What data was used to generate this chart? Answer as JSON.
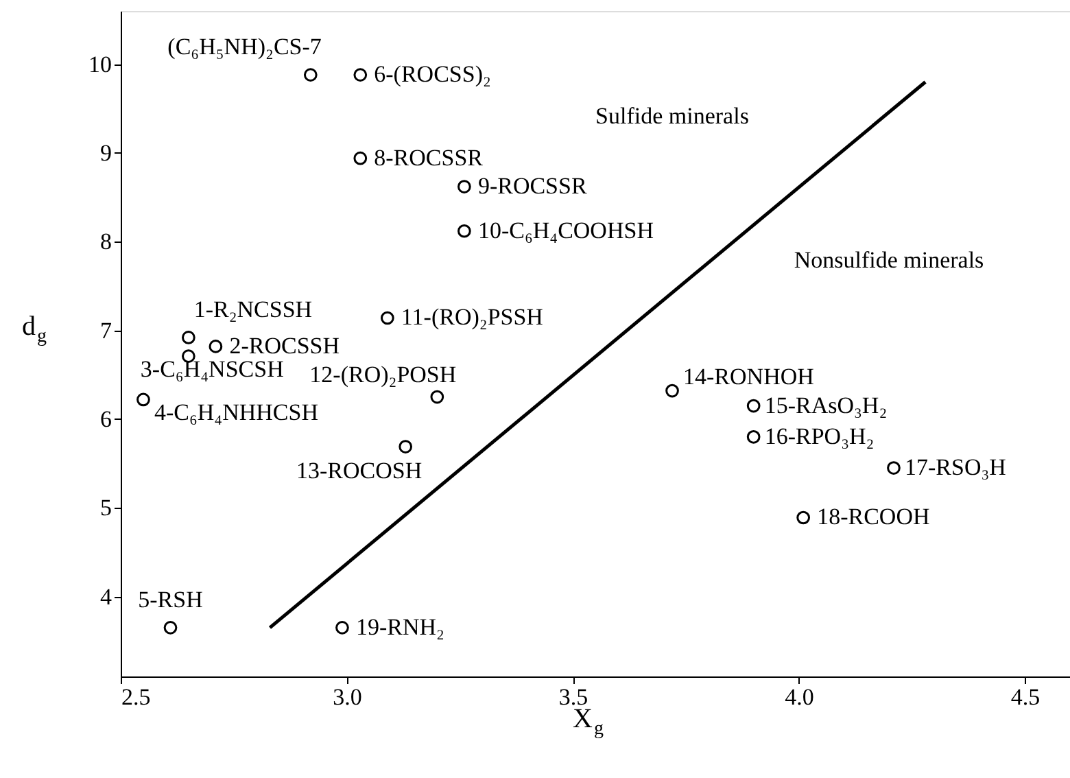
{
  "chart_data": {
    "type": "scatter",
    "xlabel": "X$_{g}$",
    "ylabel": "d$_{g}$",
    "xlim": [
      2.5,
      4.6
    ],
    "ylim": [
      3.1,
      10.6
    ],
    "xticks": [
      2.5,
      {
        "value": 3,
        "label": "3.0"
      },
      3.5,
      {
        "value": 4,
        "label": "4.0"
      },
      4.5
    ],
    "yticks": [
      4,
      5,
      6,
      7,
      8,
      9,
      10
    ],
    "grid": false,
    "series": [
      {
        "color": "#000000",
        "marker": "circle",
        "x": [
          2.92,
          3.03,
          3.03,
          3.26,
          3.26,
          2.65,
          2.65,
          2.71,
          2.55,
          3.09,
          3.2,
          3.13,
          3.72,
          3.9,
          3.9,
          4.21,
          4.01,
          2.61,
          2.99
        ],
        "values": [
          9.88,
          9.88,
          8.94,
          8.62,
          8.12,
          6.92,
          6.71,
          6.82,
          6.22,
          7.14,
          6.25,
          5.69,
          6.32,
          6.15,
          5.8,
          5.45,
          4.89,
          3.65,
          3.65
        ]
      },
      {
        "type": "line",
        "color": "#000000",
        "marker": "none",
        "line_style": "solid",
        "x": [
          2.83,
          4.28
        ],
        "values": [
          3.65,
          9.8
        ]
      }
    ],
    "annotations": [
      {
        "text": "(C₆H₅NH)₂CS-7",
        "x": 2.92,
        "y": 9.88
      },
      {
        "text": "6-(ROCSS)₂",
        "x": 3.03,
        "y": 9.88
      },
      {
        "text": "8-ROCSSR",
        "x": 3.03,
        "y": 8.94
      },
      {
        "text": "9-ROCSSR",
        "x": 3.26,
        "y": 8.62
      },
      {
        "text": "10-C₆H₄COOHSH",
        "x": 3.26,
        "y": 8.12
      },
      {
        "text": "1-R₂NCSSH",
        "x": 2.65,
        "y": 6.92
      },
      {
        "text": "3-C₆H₄NSCSH",
        "x": 2.65,
        "y": 6.71
      },
      {
        "text": "2-ROCSSH",
        "x": 2.71,
        "y": 6.82
      },
      {
        "text": "4-C₆H₄NHHCSH",
        "x": 2.55,
        "y": 6.22
      },
      {
        "text": "11-(RO)₂PSSH",
        "x": 3.09,
        "y": 7.14
      },
      {
        "text": "12-(RO)₂POSH",
        "x": 3.2,
        "y": 6.25
      },
      {
        "text": "13-ROCOSH",
        "x": 3.13,
        "y": 5.69
      },
      {
        "text": "14-RONHOH",
        "x": 3.72,
        "y": 6.32
      },
      {
        "text": "15-RAsO₃H₂",
        "x": 3.9,
        "y": 6.15
      },
      {
        "text": "16-RPO₃H₂",
        "x": 3.9,
        "y": 5.8
      },
      {
        "text": "17-RSO₃H",
        "x": 4.21,
        "y": 5.45
      },
      {
        "text": "18-RCOOH",
        "x": 4.01,
        "y": 4.89
      },
      {
        "text": "5-RSH",
        "x": 2.61,
        "y": 3.65
      },
      {
        "text": "19-RNH₂",
        "x": 2.99,
        "y": 3.65
      },
      "Sulfide minerals",
      "Nonsulfide minerals"
    ]
  }
}
